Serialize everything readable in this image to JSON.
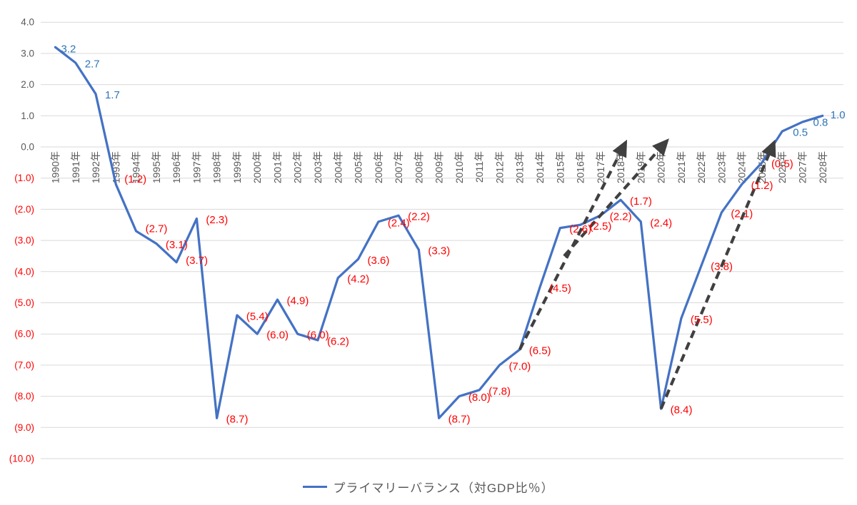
{
  "chart_data": {
    "type": "line",
    "title": "",
    "categories": [
      "1990年",
      "1991年",
      "1992年",
      "1993年",
      "1994年",
      "1995年",
      "1996年",
      "1997年",
      "1998年",
      "1999年",
      "2000年",
      "2001年",
      "2002年",
      "2003年",
      "2004年",
      "2005年",
      "2006年",
      "2007年",
      "2008年",
      "2009年",
      "2010年",
      "2011年",
      "2012年",
      "2013年",
      "2014年",
      "2015年",
      "2016年",
      "2017年",
      "2018年",
      "2019年",
      "2020年",
      "2021年",
      "2022年",
      "2023年",
      "2024年",
      "2025年",
      "2026年",
      "2027年",
      "2028年"
    ],
    "series": [
      {
        "name": "プライマリーバランス（対GDP比％）",
        "values": [
          3.2,
          2.7,
          1.7,
          -1.2,
          -2.7,
          -3.1,
          -3.7,
          -2.3,
          -8.7,
          -5.4,
          -6.0,
          -4.9,
          -6.0,
          -6.2,
          -4.2,
          -3.6,
          -2.4,
          -2.2,
          -3.3,
          -8.7,
          -8.0,
          -7.8,
          -7.0,
          -6.5,
          -4.5,
          -2.6,
          -2.5,
          -2.2,
          -1.7,
          -2.4,
          -8.4,
          -5.5,
          -3.8,
          -2.1,
          -1.2,
          -0.5,
          0.5,
          0.8,
          1.0
        ]
      }
    ],
    "xlabel": "",
    "ylabel": "",
    "ylim": [
      -10,
      4
    ],
    "ytick_step": 1,
    "ytick_decimals": 1,
    "negative_format": "parentheses",
    "grid": true,
    "legend_position": "bottom",
    "annotations": {
      "trend_arrows": [
        {
          "from": {
            "year": 2013,
            "value": -6.5
          },
          "to": {
            "year": 2018.25,
            "value": 0.15
          }
        },
        {
          "from": {
            "year": 2015.2,
            "value": -3.5
          },
          "to": {
            "year": 2020.3,
            "value": 0.2
          }
        },
        {
          "from": {
            "year": 2020,
            "value": -8.4
          },
          "to": {
            "year": 2025.6,
            "value": 0.15
          }
        }
      ]
    },
    "colors": {
      "line": "#4472C4",
      "positive_label": "#2E75B6",
      "negative_label": "#FF0000",
      "axis_text": "#595959",
      "gridline": "#D9D9D9",
      "arrow": "#404040",
      "background": "#FFFFFF"
    }
  },
  "legend": {
    "label": "プライマリーバランス（対GDP比％）"
  }
}
